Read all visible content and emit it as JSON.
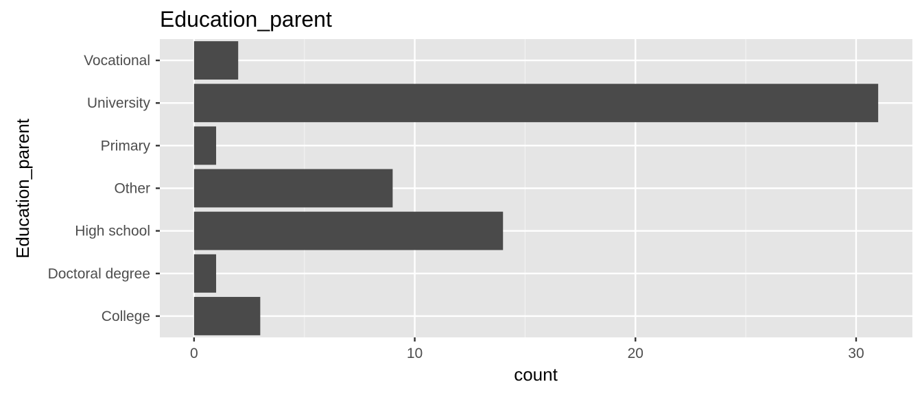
{
  "chart_data": {
    "type": "bar",
    "orientation": "horizontal",
    "title": "Education_parent",
    "xlabel": "count",
    "ylabel": "Education_parent",
    "categories": [
      "College",
      "Doctoral degree",
      "High school",
      "Other",
      "Primary",
      "University",
      "Vocational"
    ],
    "values": [
      3,
      1,
      14,
      9,
      1,
      31,
      2
    ],
    "xlim": [
      -1.55,
      32.55
    ],
    "xticks": [
      0,
      10,
      20,
      30
    ],
    "grid": true,
    "legend": "none",
    "colors": {
      "bar": "#4a4a4a",
      "panel": "#e5e5e5",
      "grid_major": "#ffffff",
      "grid_minor": "#f2f2f2",
      "tick_label": "#4d4d4d"
    }
  }
}
